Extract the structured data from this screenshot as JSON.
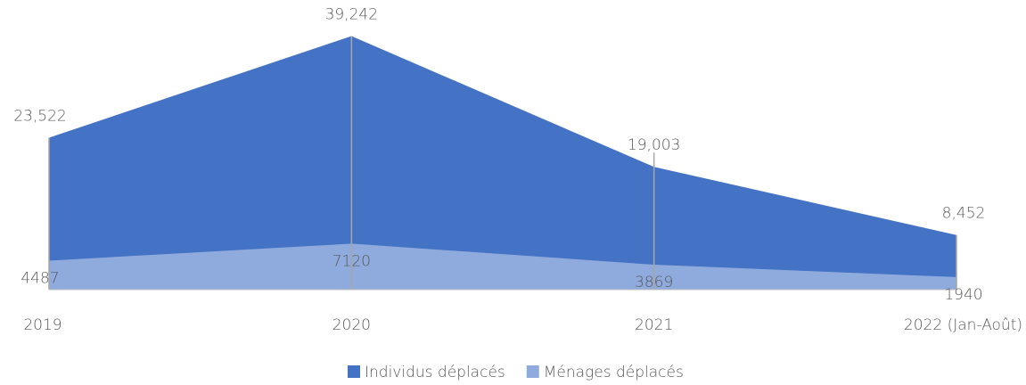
{
  "chart_data": {
    "type": "area",
    "categories": [
      "2019",
      "2020",
      "2021",
      "2022 (Jan-Août)"
    ],
    "series": [
      {
        "name": "Individus déplacés",
        "color": "#4472c4",
        "values": [
          23522,
          39242,
          19003,
          8452
        ],
        "value_labels": [
          "23,522",
          "39,242",
          "19,003",
          "8,452"
        ]
      },
      {
        "name": "Ménages déplacés",
        "color": "#8faadc",
        "values": [
          4487,
          7120,
          3869,
          1940
        ]
      }
    ],
    "ylim": [
      0,
      40000
    ],
    "legend": "bottom"
  }
}
